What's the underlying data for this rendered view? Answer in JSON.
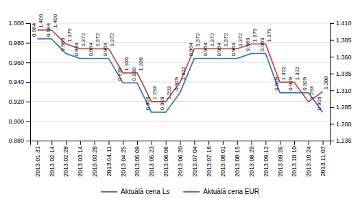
{
  "chart_data": {
    "type": "line",
    "categories": [
      "2013.01.31",
      "2013.02.14",
      "2013.02.28",
      "2013.03.14",
      "2013.03.28",
      "2013.04.11",
      "2013.04.25",
      "2013.05.09",
      "2013.05.23",
      "2013.06.06",
      "2013.06.20",
      "2013.07.04",
      "2013.07.18",
      "2013.08.01",
      "2013.08.15",
      "2013.08.29",
      "2013.09.12",
      "2013.09.26",
      "2013.10.10",
      "2013.10.24",
      "2013.11.07"
    ],
    "series": [
      {
        "name": "Aktuālā cena Ls",
        "color": "#4472C4",
        "values": [
          0.984,
          0.984,
          0.969,
          0.964,
          0.964,
          0.964,
          0.939,
          0.939,
          0.909,
          0.909,
          0.929,
          0.964,
          0.964,
          0.964,
          0.964,
          0.969,
          0.969,
          0.929,
          0.929,
          0.929,
          0.909
        ]
      },
      {
        "name": "Aktuālā cena EUR",
        "color": "#C0504D",
        "axis": "y2",
        "values": [
          1.4,
          1.4,
          1.379,
          1.372,
          1.372,
          1.372,
          1.336,
          1.336,
          1.293,
          1.293,
          1.322,
          1.372,
          1.372,
          1.372,
          1.372,
          1.379,
          1.379,
          1.322,
          1.322,
          1.293,
          1.308
        ],
        "value_labels": [
          "1.400",
          "1.400",
          "1.379",
          "1.372",
          "1.372",
          "1.372",
          "1.336",
          "1.336",
          "1.293",
          "1.293",
          "1.322",
          "1.372",
          "1.372",
          "1.372",
          "1.372",
          "1.379",
          "1.379",
          "1.322",
          "1.322",
          "1.293",
          "1.308"
        ]
      }
    ],
    "ylim": [
      0.88,
      1.0
    ],
    "yticks": [
      {
        "value": 0.88,
        "label": "0.880"
      },
      {
        "value": 0.9,
        "label": "0.900"
      },
      {
        "value": 0.92,
        "label": "0.920"
      },
      {
        "value": 0.94,
        "label": "0.940"
      },
      {
        "value": 0.96,
        "label": "0.960"
      },
      {
        "value": 0.98,
        "label": "0.980"
      },
      {
        "value": 1.0,
        "label": "1.000"
      }
    ],
    "y2lim": [
      1.235,
      1.41
    ],
    "y2ticks": [
      1.235,
      {
        "value": 1.26,
        "label": "1.260"
      },
      1.285,
      {
        "value": 1.31,
        "label": "1.310"
      },
      1.335,
      {
        "value": 1.36,
        "label": "1.360"
      },
      1.385,
      {
        "value": 1.41,
        "label": "1.410"
      }
    ],
    "grid": true,
    "legend": "bottom",
    "data_labels": true
  }
}
